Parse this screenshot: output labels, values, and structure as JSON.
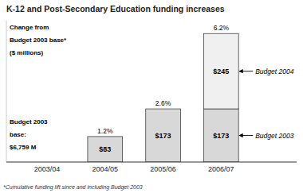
{
  "chart_data": {
    "type": "bar",
    "stacked": true,
    "title": "K-12 and Post-Secondary Education funding increases",
    "categories": [
      "2003/04",
      "2004/05",
      "2005/06",
      "2006/07"
    ],
    "series": [
      {
        "name": "Budget 2003",
        "color": "#d8d8d8",
        "values": [
          0,
          83,
          173,
          173
        ],
        "value_labels": [
          null,
          "$83",
          "$173",
          "$173"
        ]
      },
      {
        "name": "Budget 2004",
        "color": "#f0f0f0",
        "values": [
          0,
          0,
          0,
          245
        ],
        "value_labels": [
          null,
          null,
          null,
          "$245"
        ]
      }
    ],
    "data_labels": true,
    "percent_values": [
      null,
      1.2,
      2.6,
      6.2
    ],
    "percent_labels": [
      null,
      "1.2%",
      "2.6%",
      "6.2%"
    ],
    "annotations": [
      "Change from",
      "Budget 2003 base*",
      "($ millions)",
      "Budget 2003",
      "base:",
      "$6,759 M"
    ],
    "footnote": "*Cumulative funding lift since and including Budget 2003",
    "ylim": [
      0,
      460
    ],
    "tick_labels": "x"
  }
}
